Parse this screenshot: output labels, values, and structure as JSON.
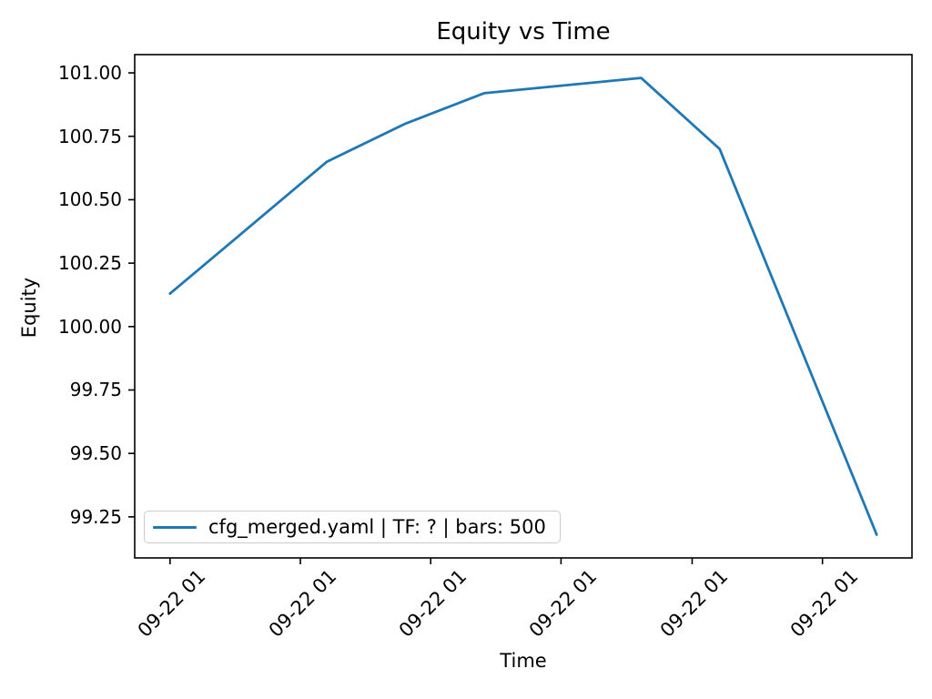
{
  "title": "Equity vs Time",
  "chart_data": {
    "type": "line",
    "title": "Equity vs Time",
    "xlabel": "Time",
    "ylabel": "Equity",
    "series": [
      {
        "name": "cfg_merged.yaml | TF: ? | bars: 500",
        "color": "#1f77b4",
        "x": [
          0,
          1,
          2,
          3,
          4,
          5,
          6,
          7,
          8,
          9
        ],
        "values": [
          100.13,
          100.39,
          100.65,
          100.8,
          100.92,
          100.95,
          100.98,
          100.7,
          99.94,
          99.18
        ]
      }
    ],
    "xlim": [
      -0.45,
      9.45
    ],
    "ylim": [
      99.088,
      101.072
    ],
    "x_ticks": {
      "positions": [
        0,
        1.66,
        3.32,
        4.98,
        6.65,
        8.31
      ],
      "labels": [
        "09-22 01",
        "09-22 01",
        "09-22 01",
        "09-22 01",
        "09-22 01",
        "09-22 01"
      ],
      "rotation_deg": 45
    },
    "y_ticks": [
      99.25,
      99.5,
      99.75,
      100.0,
      100.25,
      100.5,
      100.75,
      101.0
    ],
    "grid": false,
    "legend_position": "lower left"
  },
  "legend": {
    "label": "cfg_merged.yaml | TF: ? | bars: 500"
  },
  "colors": {
    "line": "#1f77b4",
    "spine": "#000000",
    "tick": "#000000",
    "text": "#000000",
    "legend_border": "#cccccc",
    "background": "#ffffff"
  }
}
